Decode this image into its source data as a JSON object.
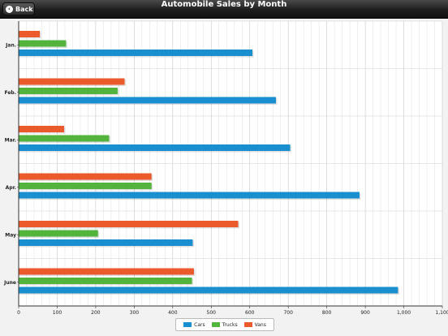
{
  "header": {
    "back_label": "Back",
    "title": "Automobile Sales by Month"
  },
  "chart_data": {
    "type": "bar",
    "orientation": "horizontal",
    "categories": [
      "Jan.",
      "Feb.",
      "Mar.",
      "Apr.",
      "May",
      "June"
    ],
    "series": [
      {
        "name": "Cars",
        "color": "#1a8fd0",
        "values": [
          607,
          668,
          705,
          885,
          452,
          985
        ]
      },
      {
        "name": "Trucks",
        "color": "#52b43c",
        "values": [
          123,
          257,
          235,
          345,
          206,
          450
        ]
      },
      {
        "name": "Vans",
        "color": "#ea5a2a",
        "values": [
          55,
          275,
          118,
          345,
          570,
          455
        ]
      }
    ],
    "xlim": [
      0,
      1100
    ],
    "x_ticks": [
      "0",
      "100",
      "200",
      "300",
      "400",
      "500",
      "600",
      "700",
      "800",
      "900",
      "1,000",
      "1,100"
    ],
    "grid": true,
    "legend_position": "bottom-center"
  }
}
